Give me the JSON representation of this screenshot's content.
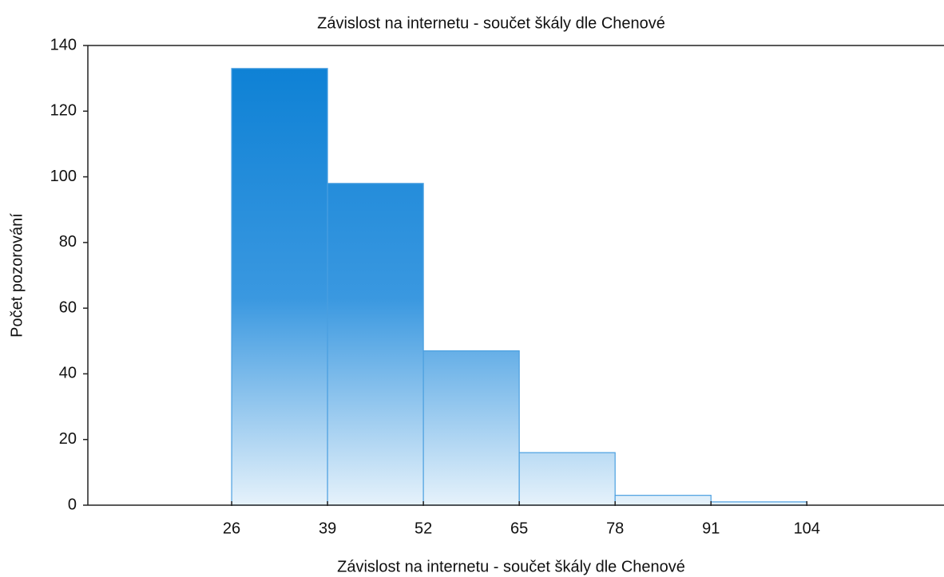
{
  "chart_data": {
    "type": "histogram",
    "title": "Závislost na internetu - součet škály dle Chenové",
    "xlabel": "Závislost na internetu - součet škály dle Chenové",
    "ylabel": "Počet pozorování",
    "bins": [
      26,
      39,
      52,
      65,
      78,
      91,
      104
    ],
    "values": [
      133,
      98,
      47,
      16,
      3,
      1
    ],
    "color": "#0a7fd4",
    "xlim": [
      6.5,
      122.6
    ],
    "xticks": [
      26,
      39,
      52,
      65,
      78,
      91,
      104
    ],
    "ylim": [
      0,
      140
    ],
    "yticks": [
      0,
      20,
      40,
      60,
      80,
      100,
      120,
      140
    ]
  }
}
